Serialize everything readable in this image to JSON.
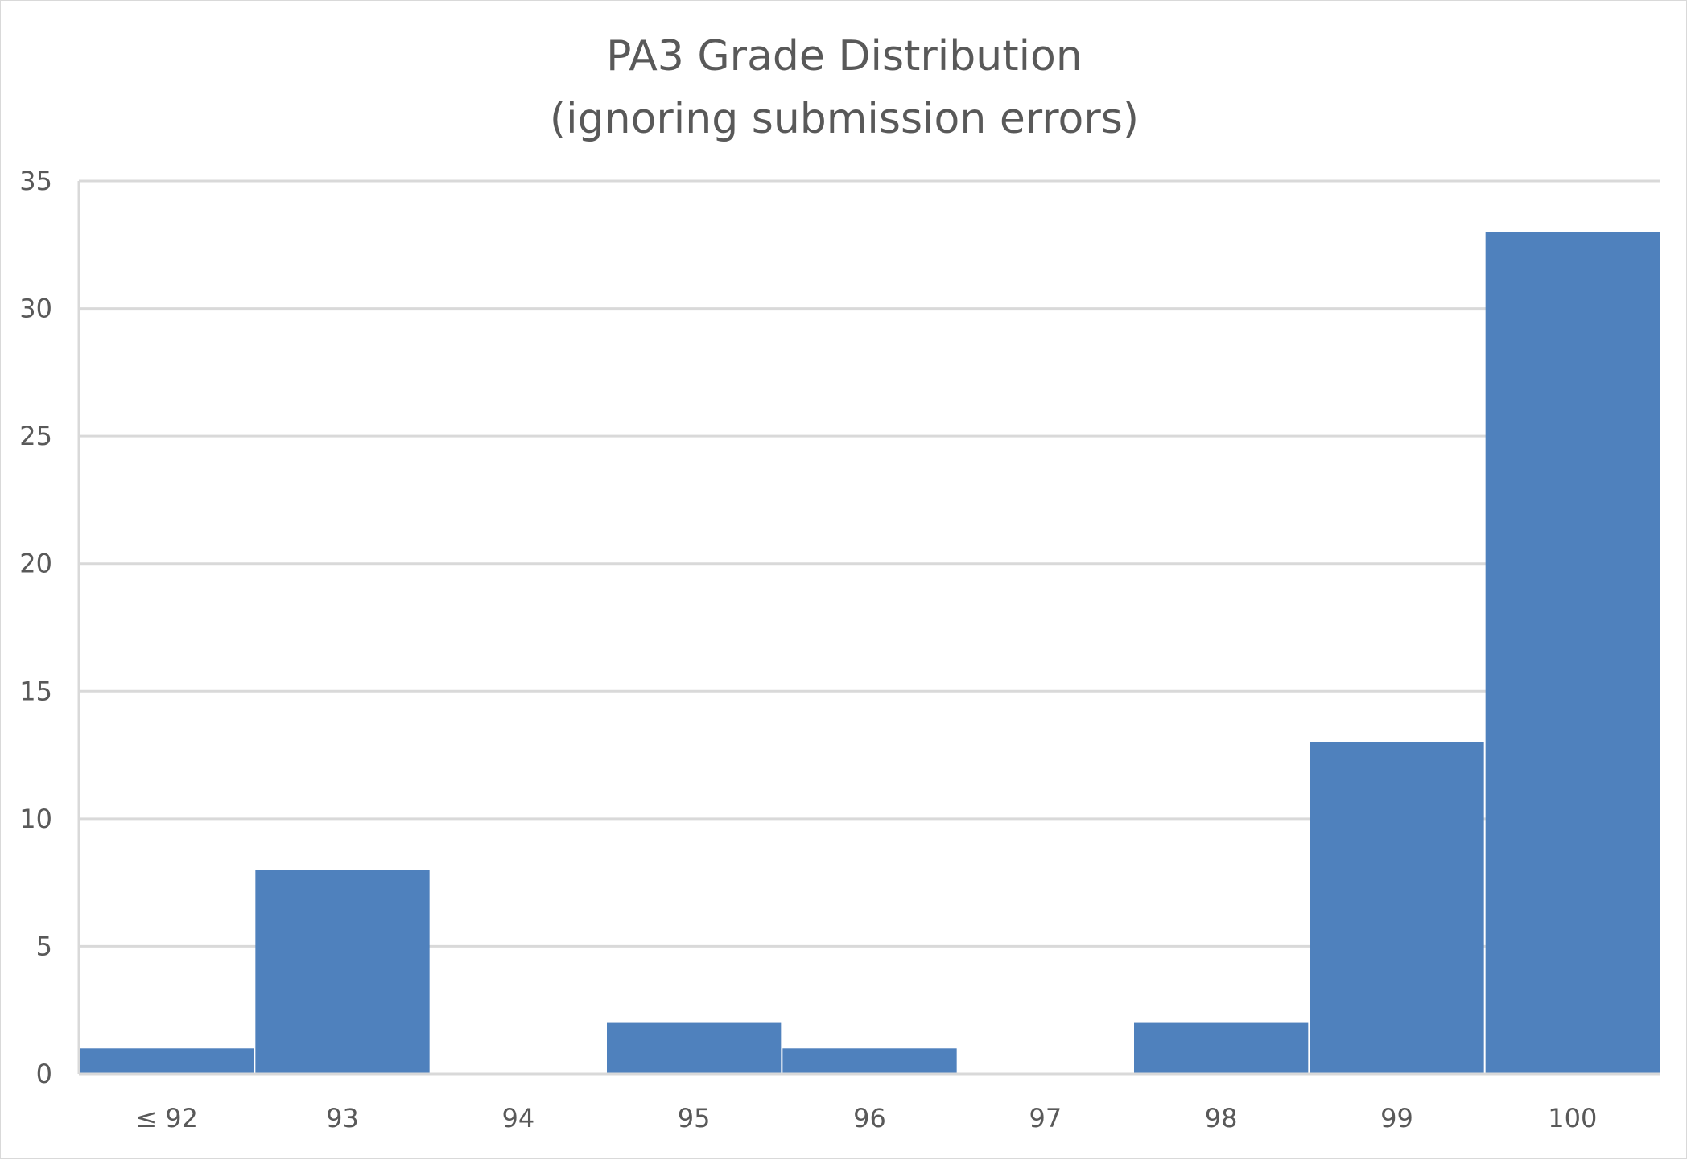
{
  "chart_data": {
    "type": "bar",
    "title": "PA3 Grade Distribution",
    "subtitle": "(ignoring submission errors)",
    "categories": [
      "≤ 92",
      "93",
      "94",
      "95",
      "96",
      "97",
      "98",
      "99",
      "100"
    ],
    "values": [
      1,
      8,
      0,
      2,
      1,
      0,
      2,
      13,
      33
    ],
    "xlabel": "",
    "ylabel": "",
    "ylim": [
      0,
      35
    ],
    "yticks": [
      0,
      5,
      10,
      15,
      20,
      25,
      30,
      35
    ],
    "grid": true,
    "legend": "none",
    "bar_color": "#4f81bd",
    "grid_color": "#d9d9d9",
    "text_color": "#595959"
  }
}
